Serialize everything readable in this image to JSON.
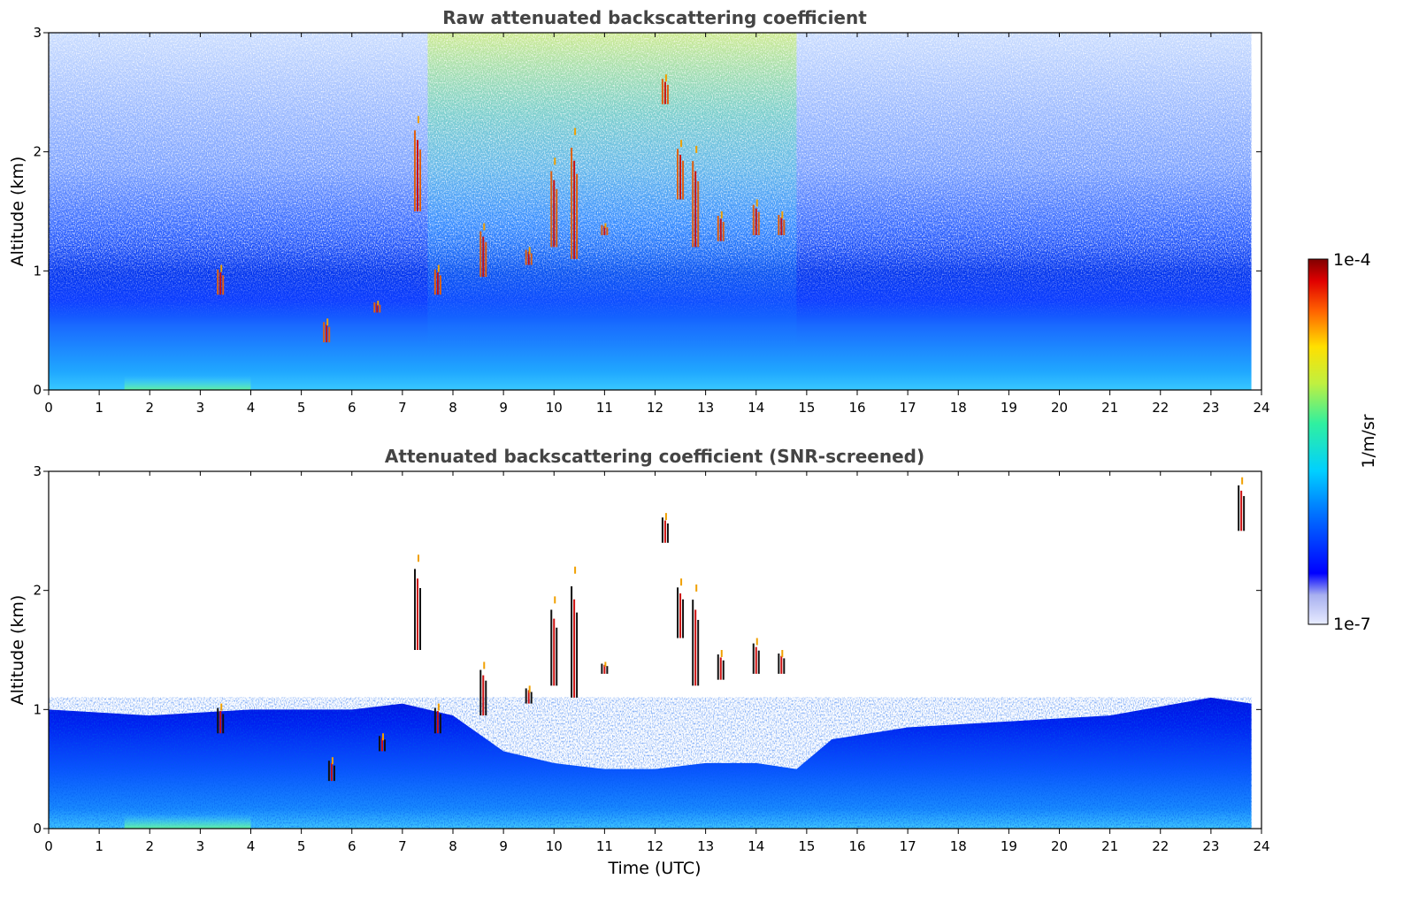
{
  "chart_data": [
    {
      "type": "heatmap",
      "title": "Raw attenuated backscattering coefficient",
      "xlabel": "",
      "ylabel": "Altitude (km)",
      "xlim": [
        0,
        24
      ],
      "ylim": [
        0,
        3
      ],
      "x_ticks": [
        "0",
        "1",
        "2",
        "3",
        "4",
        "5",
        "6",
        "7",
        "8",
        "9",
        "10",
        "11",
        "12",
        "13",
        "14",
        "15",
        "16",
        "17",
        "18",
        "19",
        "20",
        "21",
        "22",
        "23",
        "24"
      ],
      "y_ticks": [
        "0",
        "1",
        "2",
        "3"
      ],
      "data_end_time": 23.8,
      "layers": [
        {
          "name": "surface aerosol layer",
          "from_time": 0,
          "to_time": 23.8,
          "top_km": 0.7
        },
        {
          "name": "noise-dominated upper region",
          "from_time": 0,
          "to_time": 23.8,
          "bottom_km": 1.0,
          "top_km": 3.0
        },
        {
          "name": "daytime solar noise",
          "from_time": 7.5,
          "to_time": 14.8
        }
      ],
      "cloud_segments": [
        {
          "time": 3.4,
          "base_km": 0.8,
          "top_km": 1.05
        },
        {
          "time": 5.5,
          "base_km": 0.4,
          "top_km": 0.6
        },
        {
          "time": 6.5,
          "base_km": 0.65,
          "top_km": 0.75
        },
        {
          "time": 7.3,
          "base_km": 1.5,
          "top_km": 2.3
        },
        {
          "time": 7.7,
          "base_km": 0.8,
          "top_km": 1.05
        },
        {
          "time": 8.6,
          "base_km": 0.95,
          "top_km": 1.4
        },
        {
          "time": 9.5,
          "base_km": 1.05,
          "top_km": 1.2
        },
        {
          "time": 10.0,
          "base_km": 1.2,
          "top_km": 1.95
        },
        {
          "time": 10.4,
          "base_km": 1.1,
          "top_km": 2.2
        },
        {
          "time": 11.0,
          "base_km": 1.3,
          "top_km": 1.4
        },
        {
          "time": 12.2,
          "base_km": 2.4,
          "top_km": 2.65
        },
        {
          "time": 12.5,
          "base_km": 1.6,
          "top_km": 2.1
        },
        {
          "time": 12.8,
          "base_km": 1.2,
          "top_km": 2.05
        },
        {
          "time": 13.3,
          "base_km": 1.25,
          "top_km": 1.5
        },
        {
          "time": 14.0,
          "base_km": 1.3,
          "top_km": 1.6
        },
        {
          "time": 14.5,
          "base_km": 1.3,
          "top_km": 1.5
        }
      ]
    },
    {
      "type": "heatmap",
      "title": "Attenuated backscattering coefficient (SNR-screened)",
      "xlabel": "Time (UTC)",
      "ylabel": "Altitude (km)",
      "xlim": [
        0,
        24
      ],
      "ylim": [
        0,
        3
      ],
      "x_ticks": [
        "0",
        "1",
        "2",
        "3",
        "4",
        "5",
        "6",
        "7",
        "8",
        "9",
        "10",
        "11",
        "12",
        "13",
        "14",
        "15",
        "16",
        "17",
        "18",
        "19",
        "20",
        "21",
        "22",
        "23",
        "24"
      ],
      "y_ticks": [
        "0",
        "1",
        "2",
        "3"
      ],
      "data_end_time": 23.8,
      "screened_top_km": [
        {
          "time": 0,
          "km": 1.0
        },
        {
          "time": 2,
          "km": 0.95
        },
        {
          "time": 4,
          "km": 1.0
        },
        {
          "time": 6,
          "km": 1.0
        },
        {
          "time": 7,
          "km": 1.05
        },
        {
          "time": 8,
          "km": 0.95
        },
        {
          "time": 9,
          "km": 0.65
        },
        {
          "time": 10,
          "km": 0.55
        },
        {
          "time": 11,
          "km": 0.5
        },
        {
          "time": 12,
          "km": 0.5
        },
        {
          "time": 13,
          "km": 0.55
        },
        {
          "time": 14,
          "km": 0.55
        },
        {
          "time": 14.8,
          "km": 0.5
        },
        {
          "time": 15.5,
          "km": 0.75
        },
        {
          "time": 17,
          "km": 0.85
        },
        {
          "time": 19,
          "km": 0.9
        },
        {
          "time": 21,
          "km": 0.95
        },
        {
          "time": 23,
          "km": 1.1
        },
        {
          "time": 23.8,
          "km": 1.05
        }
      ],
      "cloud_segments": [
        {
          "time": 3.4,
          "base_km": 0.8,
          "top_km": 1.05
        },
        {
          "time": 5.6,
          "base_km": 0.4,
          "top_km": 0.6
        },
        {
          "time": 6.6,
          "base_km": 0.65,
          "top_km": 0.8
        },
        {
          "time": 7.3,
          "base_km": 1.5,
          "top_km": 2.3
        },
        {
          "time": 7.7,
          "base_km": 0.8,
          "top_km": 1.05
        },
        {
          "time": 8.6,
          "base_km": 0.95,
          "top_km": 1.4
        },
        {
          "time": 9.5,
          "base_km": 1.05,
          "top_km": 1.2
        },
        {
          "time": 10.0,
          "base_km": 1.2,
          "top_km": 1.95
        },
        {
          "time": 10.4,
          "base_km": 1.1,
          "top_km": 2.2
        },
        {
          "time": 11.0,
          "base_km": 1.3,
          "top_km": 1.4
        },
        {
          "time": 12.2,
          "base_km": 2.4,
          "top_km": 2.65
        },
        {
          "time": 12.5,
          "base_km": 1.6,
          "top_km": 2.1
        },
        {
          "time": 12.8,
          "base_km": 1.2,
          "top_km": 2.05
        },
        {
          "time": 13.3,
          "base_km": 1.25,
          "top_km": 1.5
        },
        {
          "time": 14.0,
          "base_km": 1.3,
          "top_km": 1.6
        },
        {
          "time": 14.5,
          "base_km": 1.3,
          "top_km": 1.5
        },
        {
          "time": 23.6,
          "base_km": 2.5,
          "top_km": 2.95
        }
      ]
    }
  ],
  "colorbar": {
    "label": "1/m/sr",
    "max_label": "1e-4",
    "min_label": "1e-7",
    "range": [
      1e-07,
      0.0001
    ],
    "scale": "log",
    "colormap": "jet"
  }
}
